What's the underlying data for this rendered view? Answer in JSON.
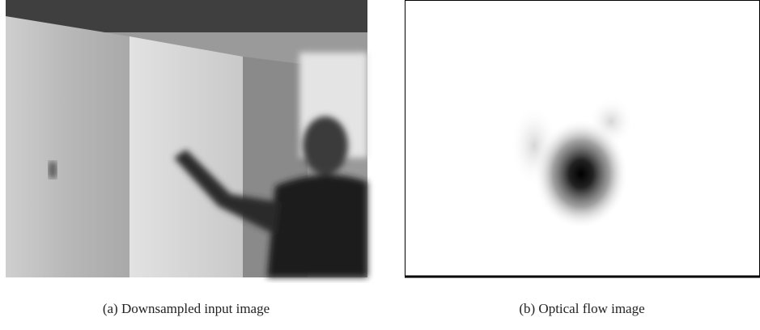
{
  "figures": [
    {
      "caption": "(a) Downsampled input image"
    },
    {
      "caption": "(b) Optical flow image"
    }
  ]
}
